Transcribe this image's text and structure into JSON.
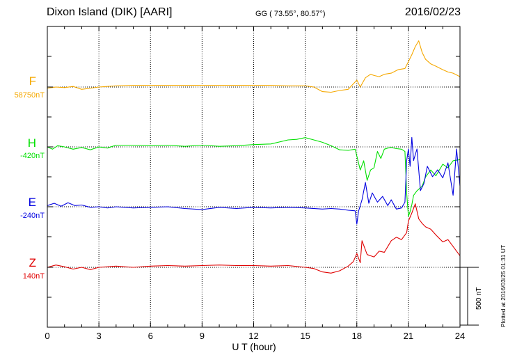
{
  "header": {
    "station": "Dixon Island (DIK)  [AARI]",
    "coords": "GG ( 73.55°,  80.57°)",
    "date": "2016/02/23"
  },
  "plotted_note": "Plotted at 2016/03/25 01:31  UT",
  "scale_bar_label": "500 nT",
  "chart_data": {
    "type": "line",
    "title": "",
    "xlabel": "U T (hour)",
    "ylabel": "",
    "xlim": [
      0,
      24
    ],
    "x_ticks": [
      0,
      3,
      6,
      9,
      12,
      15,
      18,
      21,
      24
    ],
    "x_tick_labels": [
      "0",
      "3",
      "6",
      "9",
      "12",
      "15",
      "18",
      "21",
      "24"
    ],
    "grid": "dotted vertical every 3 h, dotted baselines per channel",
    "scale_bar_nT": 500,
    "series": [
      {
        "name": "F",
        "baseline_label": "58750nT",
        "baseline_nT": 58750,
        "color": "#f5a800",
        "x": [
          0,
          0.5,
          1,
          1.5,
          2,
          2.5,
          3,
          4,
          5,
          6,
          7,
          8,
          9,
          10,
          11,
          12,
          13,
          14,
          15,
          15.5,
          16,
          16.5,
          17,
          17.5,
          18,
          18.2,
          18.5,
          18.8,
          19,
          19.3,
          19.6,
          20,
          20.4,
          20.8,
          21,
          21.2,
          21.4,
          21.6,
          21.8,
          22,
          22.3,
          22.6,
          23,
          23.3,
          23.6,
          24
        ],
        "values": [
          -10,
          0,
          -5,
          5,
          -20,
          -10,
          0,
          10,
          15,
          15,
          15,
          15,
          15,
          15,
          15,
          15,
          15,
          10,
          10,
          0,
          -40,
          -45,
          -30,
          -20,
          60,
          0,
          80,
          110,
          100,
          90,
          110,
          120,
          150,
          160,
          220,
          280,
          350,
          400,
          300,
          240,
          200,
          180,
          150,
          130,
          120,
          90
        ]
      },
      {
        "name": "H",
        "baseline_label": "-420nT",
        "baseline_nT": -420,
        "color": "#00e000",
        "x": [
          0,
          0.3,
          0.6,
          1,
          1.5,
          2,
          2.5,
          3,
          3.5,
          4,
          5,
          6,
          7,
          8,
          9,
          10,
          11,
          12,
          13,
          14,
          14.5,
          15,
          15.5,
          16,
          16.5,
          17,
          17.5,
          17.9,
          18,
          18.2,
          18.4,
          18.6,
          18.8,
          19,
          19.2,
          19.4,
          19.6,
          19.8,
          20,
          20.3,
          20.6,
          20.8,
          20.9,
          21,
          21.1,
          21.2,
          21.3,
          21.5,
          21.8,
          22,
          22.3,
          22.6,
          23,
          23.3,
          23.6,
          24
        ],
        "values": [
          0,
          -20,
          10,
          0,
          -20,
          -5,
          -25,
          0,
          -10,
          15,
          15,
          10,
          15,
          5,
          15,
          5,
          10,
          20,
          25,
          60,
          65,
          80,
          60,
          40,
          10,
          -25,
          -30,
          -20,
          -80,
          -200,
          -120,
          -290,
          -200,
          -180,
          -40,
          -100,
          -20,
          -10,
          -5,
          -15,
          -20,
          -40,
          -400,
          -600,
          -560,
          -500,
          -420,
          -380,
          -340,
          -260,
          -200,
          -250,
          -150,
          -180,
          -120,
          -110
        ]
      },
      {
        "name": "E",
        "baseline_label": "-240nT",
        "baseline_nT": -240,
        "color": "#0000e0",
        "x": [
          0,
          0.4,
          0.8,
          1.2,
          1.6,
          2,
          2.5,
          3,
          3.5,
          4,
          5,
          6,
          7,
          8,
          9,
          10,
          11,
          12,
          13,
          14,
          15,
          16,
          16.5,
          17,
          17.5,
          17.9,
          18,
          18.1,
          18.3,
          18.5,
          18.7,
          18.9,
          19.2,
          19.5,
          19.8,
          20,
          20.3,
          20.6,
          20.8,
          20.9,
          21,
          21.1,
          21.2,
          21.3,
          21.5,
          21.7,
          21.9,
          22.1,
          22.4,
          22.7,
          23,
          23.3,
          23.6,
          23.8,
          24
        ],
        "values": [
          10,
          30,
          5,
          35,
          10,
          15,
          -5,
          0,
          -10,
          0,
          -10,
          -5,
          0,
          -15,
          -25,
          -5,
          -15,
          -5,
          -10,
          -5,
          -10,
          -20,
          -15,
          -20,
          -30,
          -35,
          -150,
          -40,
          60,
          210,
          30,
          120,
          40,
          90,
          10,
          60,
          -20,
          -10,
          40,
          400,
          500,
          350,
          600,
          400,
          500,
          140,
          200,
          350,
          260,
          320,
          250,
          380,
          100,
          500,
          180
        ]
      },
      {
        "name": "Z",
        "baseline_label": "140nT",
        "baseline_nT": 140,
        "color": "#e00000",
        "x": [
          0,
          0.5,
          1,
          1.5,
          2,
          2.5,
          3,
          4,
          5,
          6,
          7,
          8,
          9,
          10,
          11,
          12,
          13,
          14,
          15,
          15.5,
          16,
          16.5,
          17,
          17.5,
          17.8,
          18,
          18.2,
          18.3,
          18.6,
          19,
          19.3,
          19.6,
          20,
          20.3,
          20.6,
          20.9,
          21,
          21.2,
          21.4,
          21.6,
          21.8,
          22,
          22.3,
          22.6,
          23,
          23.3,
          23.6,
          24
        ],
        "values": [
          0,
          20,
          5,
          -15,
          0,
          -20,
          0,
          10,
          0,
          10,
          15,
          10,
          15,
          20,
          15,
          15,
          10,
          15,
          0,
          -10,
          -40,
          -50,
          -30,
          10,
          50,
          120,
          40,
          230,
          110,
          90,
          140,
          130,
          230,
          260,
          240,
          300,
          400,
          470,
          550,
          420,
          380,
          350,
          330,
          280,
          220,
          240,
          180,
          100
        ]
      }
    ]
  }
}
